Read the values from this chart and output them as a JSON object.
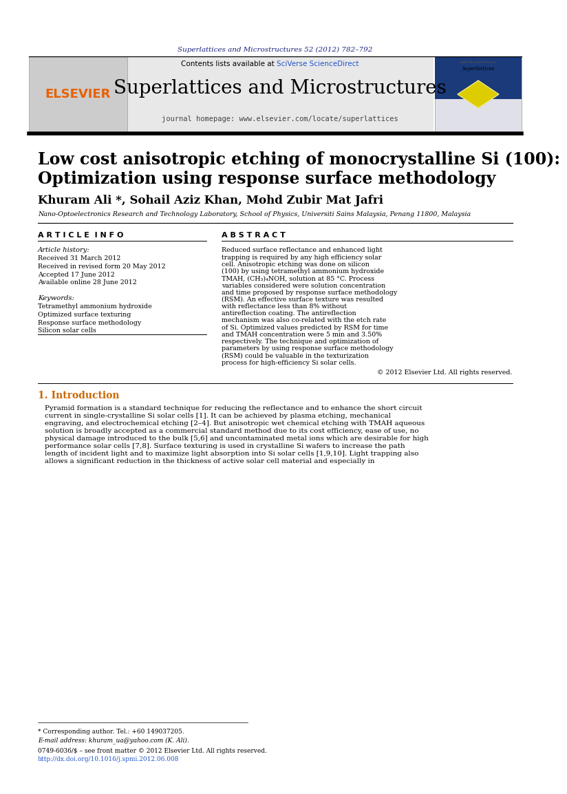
{
  "journal_ref": "Superlattices and Microstructures 52 (2012) 782–792",
  "journal_name": "Superlattices and Microstructures",
  "contents_text": "Contents lists available at ",
  "sciverse_text": "SciVerse ScienceDirect",
  "journal_homepage": "journal homepage: www.elsevier.com/locate/superlattices",
  "elsevier_text": "ELSEVIER",
  "paper_title_line1": "Low cost anisotropic etching of monocrystalline Si (100):",
  "paper_title_line2": "Optimization using response surface methodology",
  "authors": "Khuram Ali *, Sohail Aziz Khan, Mohd Zubir Mat Jafri",
  "affiliation": "Nano-Optoelectronics Research and Technology Laboratory, School of Physics, Universiti Sains Malaysia, Penang 11800, Malaysia",
  "article_info_header": "A R T I C L E  I N F O",
  "abstract_header": "A B S T R A C T",
  "article_history_label": "Article history:",
  "history_lines": [
    "Received 31 March 2012",
    "Received in revised form 20 May 2012",
    "Accepted 17 June 2012",
    "Available online 28 June 2012"
  ],
  "keywords_label": "Keywords:",
  "keywords_lines": [
    "Tetramethyl ammonium hydroxide",
    "Optimized surface texturing",
    "Response surface methodology",
    "Silicon solar cells"
  ],
  "abstract_text": "Reduced surface reflectance and enhanced light trapping is required by any high efficiency solar cell. Anisotropic etching was done on silicon (100) by using tetramethyl ammonium hydroxide TMAH, (CH₃)₄NOH, solution at 85 °C. Process variables considered were solution concentration and time proposed by response surface methodology (RSM). An effective surface texture was resulted with reflectance less than 8% without antireflection coating. The antireflection mechanism was also co-related with the etch rate of Si. Optimized values predicted by RSM for time and TMAH concentration were 5 min and 3.50% respectively. The technique and optimization of parameters by using response surface methodology (RSM) could be valuable in the texturization process for high-efficiency Si solar cells.",
  "copyright_text": "© 2012 Elsevier Ltd. All rights reserved.",
  "intro_header": "1. Introduction",
  "intro_text": "Pyramid formation is a standard technique for reducing the reflectance and to enhance the short circuit current in single-crystalline Si solar cells [1]. It can be achieved by plasma etching, mechanical engraving, and electrochemical etching [2–4]. But anisotropic wet chemical etching with TMAH aqueous solution is broadly accepted as a commercial standard method due to its cost efficiency, ease of use, no physical damage introduced to the bulk [5,6] and uncontaminated metal ions which are desirable for high performance solar cells [7,8]. Surface texturing is used in crystalline Si wafers to increase the path length of incident light and to maximize light absorption into Si solar cells [1,9,10]. Light trapping also allows a significant reduction in the thickness of active solar cell material and especially in",
  "footnote_corresponding": "* Corresponding author. Tel.: +60 149037205.",
  "footnote_email": "E-mail address: khuram_ua@yahoo.com (K. Ali).",
  "footnote_issn": "0749-6036/$ – see front matter © 2012 Elsevier Ltd. All rights reserved.",
  "footnote_doi": "http://dx.doi.org/10.1016/j.spmi.2012.06.008",
  "bg_color": "#ffffff",
  "header_bg": "#e8e8e8",
  "dark_blue": "#1a237e",
  "orange_color": "#e86000",
  "blue_link": "#2255cc",
  "section_color": "#cc6600"
}
